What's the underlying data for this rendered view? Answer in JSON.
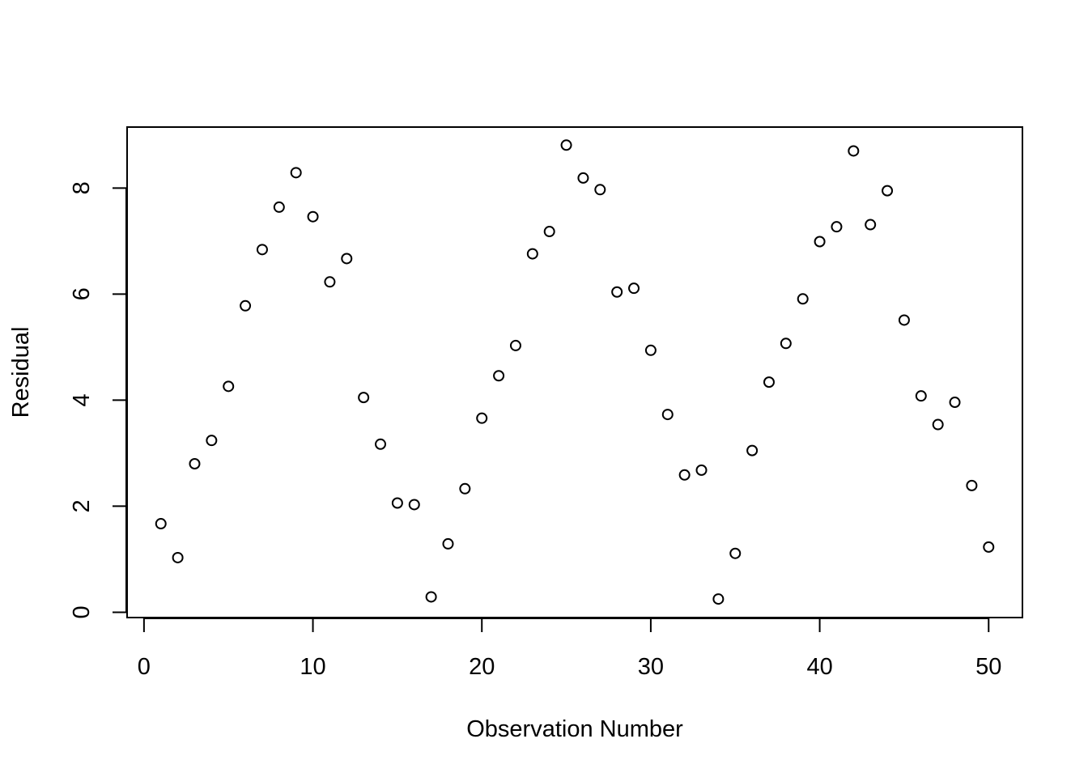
{
  "chart_data": {
    "type": "scatter",
    "title": "",
    "xlabel": "Observation Number",
    "ylabel": "Residual",
    "xlim": [
      -1,
      52
    ],
    "ylim": [
      -0.1,
      9.15
    ],
    "x_ticks": [
      0,
      10,
      20,
      30,
      40,
      50
    ],
    "y_ticks": [
      0,
      2,
      4,
      6,
      8
    ],
    "grid": false,
    "legend": "none",
    "marker": "open-circle",
    "colors": {
      "point": "#000000",
      "axis": "#000000",
      "background": "#ffffff"
    },
    "x": [
      1,
      2,
      3,
      4,
      5,
      6,
      7,
      8,
      9,
      10,
      11,
      12,
      13,
      14,
      15,
      16,
      17,
      18,
      19,
      20,
      21,
      22,
      23,
      24,
      25,
      26,
      27,
      28,
      29,
      30,
      31,
      32,
      33,
      34,
      35,
      36,
      37,
      38,
      39,
      40,
      41,
      42,
      43,
      44,
      45,
      46,
      47,
      48,
      49,
      50
    ],
    "y": [
      1.67,
      1.03,
      2.8,
      3.24,
      4.26,
      5.78,
      6.84,
      7.64,
      8.29,
      7.46,
      6.23,
      6.67,
      4.05,
      3.17,
      2.06,
      2.03,
      0.29,
      1.29,
      2.33,
      3.66,
      4.46,
      5.03,
      6.76,
      7.18,
      8.81,
      8.19,
      7.97,
      6.04,
      6.11,
      4.94,
      3.73,
      2.59,
      2.68,
      0.25,
      1.11,
      3.05,
      4.34,
      5.07,
      5.91,
      6.99,
      7.27,
      8.7,
      7.31,
      7.95,
      5.51,
      4.08,
      3.54,
      3.96,
      2.39,
      1.23
    ]
  }
}
